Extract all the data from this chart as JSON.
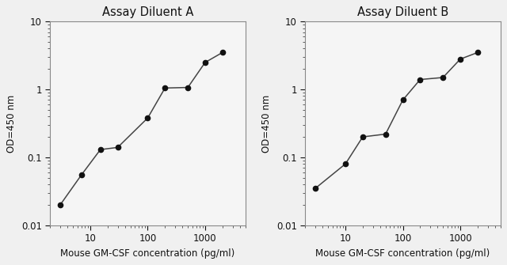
{
  "title_A": "Assay Diluent A",
  "title_B": "Assay Diluent B",
  "xlabel": "Mouse GM-CSF concentration (pg/ml)",
  "ylabel": "OD=450 nm",
  "A_x": [
    3,
    7,
    15,
    30,
    100,
    200,
    500,
    1000,
    2000
  ],
  "A_y": [
    0.02,
    0.055,
    0.13,
    0.14,
    0.38,
    1.05,
    1.07,
    2.5,
    3.5
  ],
  "B_x": [
    3,
    10,
    20,
    50,
    100,
    200,
    500,
    1000,
    2000
  ],
  "B_y": [
    0.035,
    0.08,
    0.2,
    0.22,
    0.7,
    1.4,
    1.5,
    2.8,
    3.5
  ],
  "xlim": [
    2,
    5000
  ],
  "ylim": [
    0.01,
    10
  ],
  "yticks": [
    0.01,
    0.1,
    1,
    10
  ],
  "ytick_labels": [
    "0.01",
    "0.1",
    "1",
    "10"
  ],
  "xticks": [
    10,
    100,
    1000
  ],
  "xtick_labels": [
    "10",
    "100",
    "1000"
  ],
  "bg_color": "#f0f0f0",
  "plot_bg": "#f5f5f5",
  "line_color": "#444444",
  "marker_color": "#111111",
  "marker_size": 4.5,
  "line_width": 1.1,
  "title_fontsize": 10.5,
  "label_fontsize": 8.5,
  "tick_fontsize": 8.5
}
